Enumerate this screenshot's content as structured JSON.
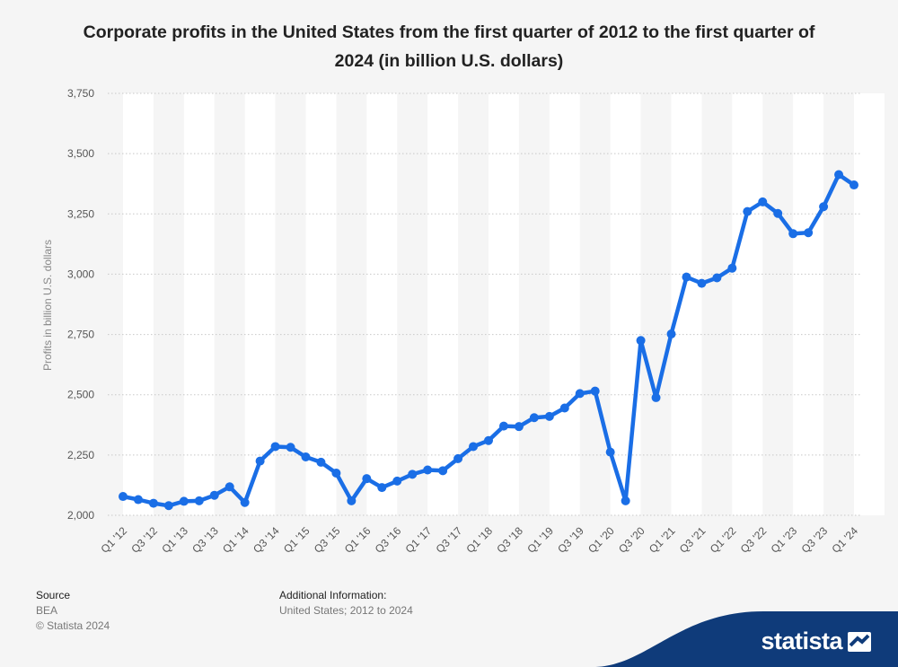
{
  "title": "Corporate profits in the United States from the first quarter of 2012 to the first quarter of 2024 (in billion U.S. dollars)",
  "footer": {
    "source_heading": "Source",
    "source_value": "BEA",
    "copyright": "© Statista 2024",
    "info_heading": "Additional Information:",
    "info_value": "United States; 2012 to 2024"
  },
  "brand": {
    "name": "statista",
    "color": "#0f3b7a"
  },
  "chart_data": {
    "type": "line",
    "title": "Corporate profits in the United States from the first quarter of 2012 to the first quarter of 2024 (in billion U.S. dollars)",
    "ylabel": "Profits in billion U.S. dollars",
    "xlabel": "",
    "ylim": [
      2000,
      3750
    ],
    "yticks": [
      2000,
      2250,
      2500,
      2750,
      3000,
      3250,
      3500,
      3750
    ],
    "ytick_labels": [
      "2,000",
      "2,250",
      "2,500",
      "2,750",
      "3,000",
      "3,250",
      "3,500",
      "3,750"
    ],
    "grid": true,
    "line_color": "#1a6ee6",
    "x": [
      "Q1 '12",
      "Q2 '12",
      "Q3 '12",
      "Q4 '12",
      "Q1 '13",
      "Q2 '13",
      "Q3 '13",
      "Q4 '13",
      "Q1 '14",
      "Q2 '14",
      "Q3 '14",
      "Q4 '14",
      "Q1 '15",
      "Q2 '15",
      "Q3 '15",
      "Q4 '15",
      "Q1 '16",
      "Q2 '16",
      "Q3 '16",
      "Q4 '16",
      "Q1 '17",
      "Q2 '17",
      "Q3 '17",
      "Q4 '17",
      "Q1 '18",
      "Q2 '18",
      "Q3 '18",
      "Q4 '18",
      "Q1 '19",
      "Q2 '19",
      "Q3 '19",
      "Q4 '19",
      "Q1 '20",
      "Q2 '20",
      "Q3 '20",
      "Q4 '20",
      "Q1 '21",
      "Q2 '21",
      "Q3 '21",
      "Q4 '21",
      "Q1 '22",
      "Q2 '22",
      "Q3 '22",
      "Q4 '22",
      "Q1 '23",
      "Q2 '23",
      "Q3 '23",
      "Q4 '23",
      "Q1 '24"
    ],
    "x_tick_labels": [
      "Q1 '12",
      "Q3 '12",
      "Q1 '13",
      "Q3 '13",
      "Q1 '14",
      "Q3 '14",
      "Q1 '15",
      "Q3 '15",
      "Q1 '16",
      "Q3 '16",
      "Q1 '17",
      "Q3 '17",
      "Q1 '18",
      "Q3 '18",
      "Q1 '19",
      "Q3 '19",
      "Q1 '20",
      "Q3 '20",
      "Q1 '21",
      "Q3 '21",
      "Q1 '22",
      "Q3 '22",
      "Q1 '23",
      "Q3 '23",
      "Q1 '24"
    ],
    "series": [
      {
        "name": "Corporate profits",
        "values": [
          2078,
          2065,
          2050,
          2040,
          2058,
          2060,
          2083,
          2118,
          2053,
          2225,
          2285,
          2282,
          2242,
          2220,
          2175,
          2060,
          2152,
          2115,
          2142,
          2170,
          2188,
          2185,
          2235,
          2285,
          2310,
          2370,
          2368,
          2405,
          2410,
          2445,
          2505,
          2515,
          2262,
          2060,
          2725,
          2488,
          2752,
          2988,
          2962,
          2985,
          3025,
          3260,
          3300,
          3252,
          3168,
          3172,
          3280,
          3413,
          3370
        ]
      }
    ]
  }
}
